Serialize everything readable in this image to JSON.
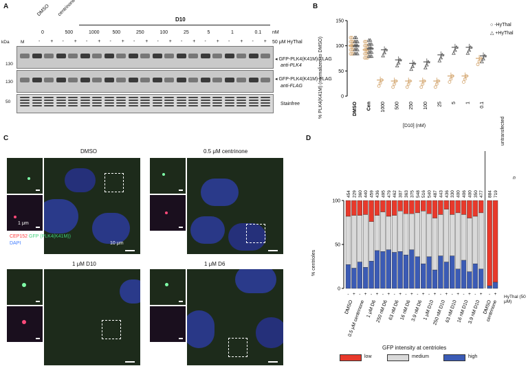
{
  "panel_labels": {
    "a": "A",
    "b": "B",
    "c": "C",
    "d": "D"
  },
  "panelA": {
    "header_lanes": [
      "DMSO",
      "centrinone"
    ],
    "d10_label": "D10",
    "concentrations": [
      "0",
      "500",
      "1000",
      "500",
      "250",
      "100",
      "25",
      "5",
      "1",
      "0.1"
    ],
    "nM": "nM",
    "kda": "kDa",
    "marker": "M",
    "hythal_label": "50 μM HyThal",
    "signs": [
      "-",
      "+",
      "-",
      "+",
      "-",
      "+",
      "-",
      "+",
      "-",
      "+",
      "-",
      "+",
      "-",
      "+",
      "-",
      "+",
      "-",
      "+",
      "-",
      "+"
    ],
    "mw": [
      "130",
      "130",
      "50"
    ],
    "blot1_label1": "GFP-PLK4(K41M)-FLAG",
    "blot1_label2": "anti-PLK4",
    "blot2_label1": "GFP-PLK4(K41M)-FLAG",
    "blot2_label2": "anti-FLAG",
    "blot3_label": "Stainfree"
  },
  "panelB": {
    "chart_data": {
      "type": "scatter",
      "ylabel": "% PLK4(K41M) (normalized to DMSO)",
      "xlabel": "[D10] (nM)",
      "categories": [
        "DMSO",
        "Cen",
        "1000",
        "500",
        "250",
        "100",
        "25",
        "5",
        "1",
        "0.1"
      ],
      "ylim": [
        0,
        150
      ],
      "yticks": [
        0,
        50,
        100,
        150
      ],
      "series": [
        {
          "name": "-HyThal",
          "means": [
            100,
            92,
            32,
            30,
            30,
            30,
            30,
            40,
            40,
            75
          ]
        },
        {
          "name": "+HyThal",
          "means": [
            100,
            95,
            92,
            72,
            65,
            68,
            82,
            97,
            97,
            80
          ]
        }
      ]
    },
    "legend": [
      "-HyThal",
      "+HyThal"
    ]
  },
  "panelC": {
    "titles": [
      "DMSO",
      "0.5 μM centrinone",
      "1 μM D10",
      "1 μM D6"
    ],
    "legend_cep": "CEP152",
    "legend_gfp": "GFP (PLK4(K41M))",
    "legend_dapi": "DAPI",
    "scale_small": "1 μm",
    "scale_large": "10 μm"
  },
  "panelD": {
    "chart_data": {
      "type": "bar",
      "ylabel": "% centrioles",
      "xlabel": "GFP intensity at centrioles",
      "yticks": [
        0,
        50,
        100
      ],
      "n_label": "n",
      "unstransfected_label": "untransfected",
      "hythal_axis_label": "HyThal (50 μM)",
      "n_values": [
        "454",
        "229",
        "360",
        "440",
        "459",
        "436",
        "495",
        "479",
        "462",
        "307",
        "363",
        "375",
        "548",
        "516",
        "540",
        "487",
        "443",
        "436",
        "330",
        "400",
        "406",
        "400",
        "350",
        "477",
        "884",
        "719"
      ],
      "high": [
        27,
        23,
        30,
        24,
        31,
        43,
        42,
        44,
        41,
        42,
        38,
        44,
        36,
        28,
        36,
        21,
        37,
        30,
        37,
        22,
        32,
        19,
        28,
        22,
        3,
        7
      ],
      "medium": [
        55,
        60,
        53,
        60,
        45,
        40,
        45,
        38,
        42,
        46,
        47,
        41,
        50,
        60,
        49,
        59,
        47,
        60,
        47,
        64,
        52,
        61,
        54,
        64,
        0,
        0
      ],
      "groups": [
        "DMSO",
        "0.5 μM centrinone",
        "1 μM D6",
        "250 nM D6",
        "63 nM D6",
        "16 nM D6",
        "3.9 nM D6",
        "1 μM D10",
        "250 nM D10",
        "63 nM D10",
        "16 nM D10",
        "3.9 nM D10",
        "DMSO",
        "centrinone"
      ],
      "legend": [
        "low",
        "medium",
        "high"
      ],
      "colors": {
        "low": "#e8392b",
        "medium": "#d9d9d9",
        "high": "#3b5bb5"
      }
    }
  }
}
